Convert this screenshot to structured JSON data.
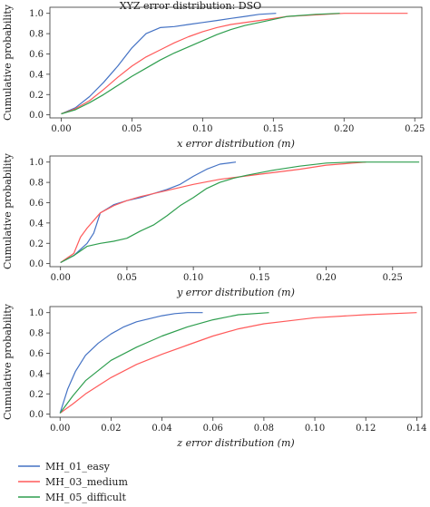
{
  "colors": {
    "MH_01_easy": "#4472c4",
    "MH_03_medium": "#ff5a5a",
    "MH_05_difficult": "#2e9e4e"
  },
  "legend": {
    "placement": "bottom-left",
    "entries": [
      "MH_01_easy",
      "MH_03_medium",
      "MH_05_difficult"
    ]
  },
  "chart_data": [
    {
      "type": "line",
      "title": "XYZ error distribution: DSO",
      "xlabel": "x error distribution (m)",
      "ylabel": "Cumulative probability",
      "xlim": [
        -0.008,
        0.255
      ],
      "ylim": [
        -0.03,
        1.06
      ],
      "xticks": [
        0.0,
        0.05,
        0.1,
        0.15,
        0.2,
        0.25
      ],
      "xtick_labels": [
        "0.00",
        "0.05",
        "0.10",
        "0.15",
        "0.20",
        "0.25"
      ],
      "yticks": [
        0.0,
        0.2,
        0.4,
        0.6,
        0.8,
        1.0
      ],
      "ytick_labels": [
        "0.0",
        "0.2",
        "0.4",
        "0.6",
        "0.8",
        "1.0"
      ],
      "grid": false,
      "series": [
        {
          "name": "MH_01_easy",
          "x": [
            0.0,
            0.01,
            0.02,
            0.03,
            0.04,
            0.05,
            0.06,
            0.07,
            0.08,
            0.09,
            0.1,
            0.11,
            0.12,
            0.13,
            0.14,
            0.152
          ],
          "y": [
            0.01,
            0.07,
            0.18,
            0.32,
            0.48,
            0.66,
            0.8,
            0.86,
            0.87,
            0.89,
            0.91,
            0.93,
            0.95,
            0.97,
            0.99,
            1.0
          ]
        },
        {
          "name": "MH_03_medium",
          "x": [
            0.0,
            0.01,
            0.02,
            0.03,
            0.04,
            0.05,
            0.06,
            0.07,
            0.08,
            0.09,
            0.1,
            0.11,
            0.12,
            0.14,
            0.16,
            0.2,
            0.245
          ],
          "y": [
            0.01,
            0.06,
            0.14,
            0.25,
            0.37,
            0.48,
            0.57,
            0.64,
            0.71,
            0.77,
            0.82,
            0.86,
            0.89,
            0.93,
            0.97,
            1.0,
            1.0
          ]
        },
        {
          "name": "MH_05_difficult",
          "x": [
            0.0,
            0.01,
            0.02,
            0.03,
            0.04,
            0.05,
            0.06,
            0.07,
            0.08,
            0.09,
            0.1,
            0.11,
            0.12,
            0.13,
            0.14,
            0.15,
            0.16,
            0.18,
            0.197
          ],
          "y": [
            0.01,
            0.05,
            0.12,
            0.2,
            0.29,
            0.38,
            0.46,
            0.54,
            0.61,
            0.67,
            0.73,
            0.79,
            0.84,
            0.88,
            0.91,
            0.94,
            0.97,
            0.99,
            1.0
          ]
        }
      ]
    },
    {
      "type": "line",
      "title": "",
      "xlabel": "y error distribution (m)",
      "ylabel": "Cumulative probability",
      "xlim": [
        -0.008,
        0.272
      ],
      "ylim": [
        -0.03,
        1.06
      ],
      "xticks": [
        0.0,
        0.05,
        0.1,
        0.15,
        0.2,
        0.25
      ],
      "xtick_labels": [
        "0.00",
        "0.05",
        "0.10",
        "0.15",
        "0.20",
        "0.25"
      ],
      "yticks": [
        0.0,
        0.2,
        0.4,
        0.6,
        0.8,
        1.0
      ],
      "ytick_labels": [
        "0.0",
        "0.2",
        "0.4",
        "0.6",
        "0.8",
        "1.0"
      ],
      "grid": false,
      "series": [
        {
          "name": "MH_01_easy",
          "x": [
            0.0,
            0.01,
            0.02,
            0.025,
            0.03,
            0.04,
            0.05,
            0.06,
            0.07,
            0.08,
            0.09,
            0.1,
            0.11,
            0.12,
            0.132
          ],
          "y": [
            0.01,
            0.08,
            0.2,
            0.3,
            0.5,
            0.58,
            0.62,
            0.65,
            0.69,
            0.73,
            0.78,
            0.86,
            0.93,
            0.98,
            1.0
          ]
        },
        {
          "name": "MH_03_medium",
          "x": [
            0.0,
            0.01,
            0.015,
            0.02,
            0.03,
            0.04,
            0.05,
            0.06,
            0.08,
            0.1,
            0.12,
            0.15,
            0.18,
            0.2,
            0.23
          ],
          "y": [
            0.01,
            0.1,
            0.26,
            0.35,
            0.5,
            0.57,
            0.62,
            0.66,
            0.72,
            0.78,
            0.83,
            0.88,
            0.93,
            0.97,
            1.0
          ]
        },
        {
          "name": "MH_05_difficult",
          "x": [
            0.0,
            0.01,
            0.02,
            0.03,
            0.04,
            0.05,
            0.06,
            0.07,
            0.08,
            0.09,
            0.1,
            0.11,
            0.12,
            0.13,
            0.14,
            0.16,
            0.18,
            0.2,
            0.22,
            0.27
          ],
          "y": [
            0.01,
            0.08,
            0.17,
            0.2,
            0.22,
            0.25,
            0.32,
            0.38,
            0.47,
            0.57,
            0.65,
            0.74,
            0.8,
            0.84,
            0.87,
            0.92,
            0.96,
            0.99,
            1.0,
            1.0
          ]
        }
      ]
    },
    {
      "type": "line",
      "title": "",
      "xlabel": "z error distribution (m)",
      "ylabel": "Cumulative probability",
      "xlim": [
        -0.004,
        0.142
      ],
      "ylim": [
        -0.03,
        1.06
      ],
      "xticks": [
        0.0,
        0.02,
        0.04,
        0.06,
        0.08,
        0.1,
        0.12,
        0.14
      ],
      "xtick_labels": [
        "0.00",
        "0.02",
        "0.04",
        "0.06",
        "0.08",
        "0.10",
        "0.12",
        "0.14"
      ],
      "yticks": [
        0.0,
        0.2,
        0.4,
        0.6,
        0.8,
        1.0
      ],
      "ytick_labels": [
        "0.0",
        "0.2",
        "0.4",
        "0.6",
        "0.8",
        "1.0"
      ],
      "grid": false,
      "series": [
        {
          "name": "MH_01_easy",
          "x": [
            0.0,
            0.003,
            0.006,
            0.01,
            0.015,
            0.02,
            0.025,
            0.03,
            0.035,
            0.04,
            0.045,
            0.05,
            0.056
          ],
          "y": [
            0.01,
            0.25,
            0.42,
            0.58,
            0.7,
            0.79,
            0.86,
            0.91,
            0.94,
            0.97,
            0.99,
            1.0,
            1.0
          ]
        },
        {
          "name": "MH_03_medium",
          "x": [
            0.0,
            0.005,
            0.01,
            0.02,
            0.03,
            0.04,
            0.05,
            0.06,
            0.07,
            0.08,
            0.09,
            0.1,
            0.12,
            0.14
          ],
          "y": [
            0.01,
            0.1,
            0.2,
            0.36,
            0.49,
            0.59,
            0.68,
            0.77,
            0.84,
            0.89,
            0.92,
            0.95,
            0.98,
            1.0
          ]
        },
        {
          "name": "MH_05_difficult",
          "x": [
            0.0,
            0.005,
            0.01,
            0.02,
            0.03,
            0.04,
            0.05,
            0.06,
            0.07,
            0.082
          ],
          "y": [
            0.01,
            0.18,
            0.33,
            0.53,
            0.66,
            0.77,
            0.86,
            0.93,
            0.98,
            1.0
          ]
        }
      ]
    }
  ]
}
